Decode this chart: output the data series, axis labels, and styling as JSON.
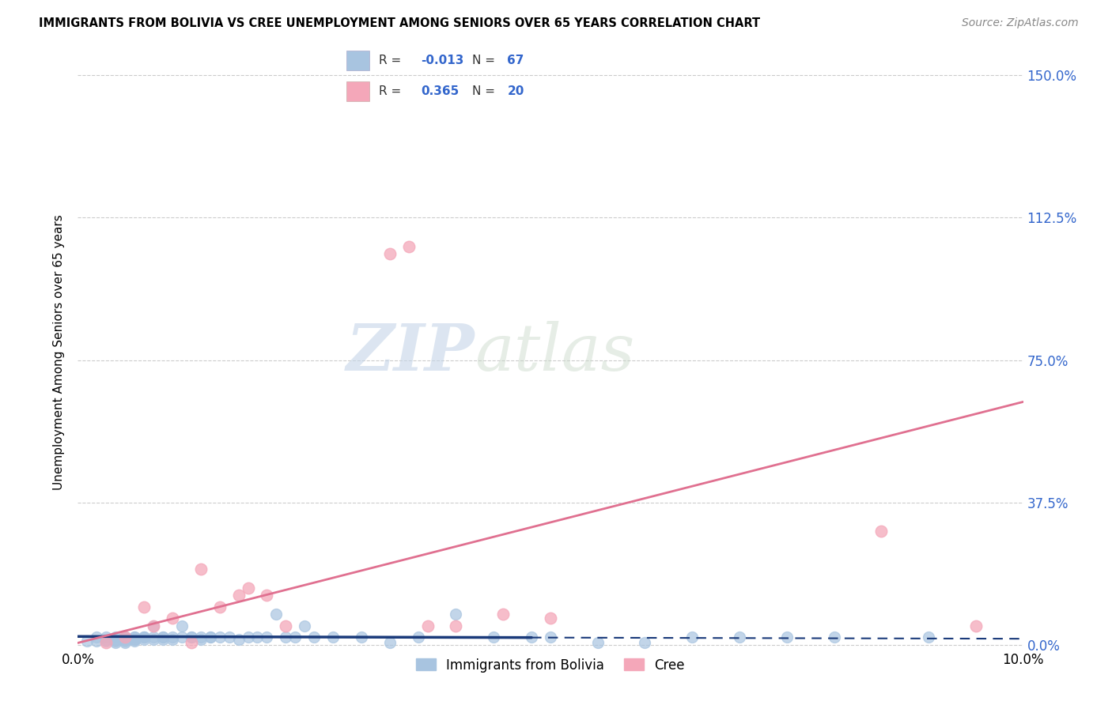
{
  "title": "IMMIGRANTS FROM BOLIVIA VS CREE UNEMPLOYMENT AMONG SENIORS OVER 65 YEARS CORRELATION CHART",
  "source": "Source: ZipAtlas.com",
  "ylabel": "Unemployment Among Seniors over 65 years",
  "yticks": [
    "0.0%",
    "37.5%",
    "75.0%",
    "112.5%",
    "150.0%"
  ],
  "ytick_vals": [
    0.0,
    0.375,
    0.75,
    1.125,
    1.5
  ],
  "xlim": [
    0,
    0.1
  ],
  "ylim": [
    -0.01,
    1.55
  ],
  "r_bolivia": "-0.013",
  "n_bolivia": "67",
  "r_cree": "0.365",
  "n_cree": "20",
  "color_bolivia": "#a8c4e0",
  "color_cree": "#f4a7b9",
  "line_color_bolivia": "#1a3a7a",
  "line_color_cree": "#e07090",
  "watermark_zip": "ZIP",
  "watermark_atlas": "atlas",
  "legend_labels": [
    "Immigrants from Bolivia",
    "Cree"
  ],
  "bolivia_x": [
    0.001,
    0.002,
    0.002,
    0.003,
    0.003,
    0.003,
    0.004,
    0.004,
    0.004,
    0.004,
    0.005,
    0.005,
    0.005,
    0.005,
    0.005,
    0.005,
    0.006,
    0.006,
    0.006,
    0.006,
    0.006,
    0.007,
    0.007,
    0.007,
    0.007,
    0.008,
    0.008,
    0.008,
    0.009,
    0.009,
    0.009,
    0.01,
    0.01,
    0.011,
    0.011,
    0.012,
    0.012,
    0.013,
    0.013,
    0.014,
    0.014,
    0.015,
    0.016,
    0.017,
    0.018,
    0.019,
    0.02,
    0.021,
    0.022,
    0.023,
    0.024,
    0.025,
    0.027,
    0.03,
    0.033,
    0.036,
    0.04,
    0.044,
    0.048,
    0.05,
    0.055,
    0.06,
    0.065,
    0.07,
    0.075,
    0.08,
    0.09
  ],
  "bolivia_y": [
    0.01,
    0.02,
    0.01,
    0.02,
    0.015,
    0.01,
    0.02,
    0.01,
    0.005,
    0.015,
    0.02,
    0.015,
    0.01,
    0.02,
    0.005,
    0.02,
    0.02,
    0.015,
    0.01,
    0.02,
    0.015,
    0.02,
    0.02,
    0.015,
    0.02,
    0.05,
    0.02,
    0.015,
    0.02,
    0.015,
    0.02,
    0.02,
    0.015,
    0.02,
    0.05,
    0.02,
    0.02,
    0.02,
    0.015,
    0.02,
    0.02,
    0.02,
    0.02,
    0.015,
    0.02,
    0.02,
    0.02,
    0.08,
    0.02,
    0.02,
    0.05,
    0.02,
    0.02,
    0.02,
    0.005,
    0.02,
    0.08,
    0.02,
    0.02,
    0.02,
    0.005,
    0.005,
    0.02,
    0.02,
    0.02,
    0.02,
    0.02
  ],
  "cree_x": [
    0.003,
    0.005,
    0.007,
    0.008,
    0.01,
    0.012,
    0.013,
    0.015,
    0.017,
    0.018,
    0.02,
    0.022,
    0.033,
    0.035,
    0.037,
    0.04,
    0.045,
    0.05,
    0.085,
    0.095
  ],
  "cree_y": [
    0.005,
    0.02,
    0.1,
    0.05,
    0.07,
    0.005,
    0.2,
    0.1,
    0.13,
    0.15,
    0.13,
    0.05,
    1.03,
    1.05,
    0.05,
    0.05,
    0.08,
    0.07,
    0.3,
    0.05
  ],
  "bolivia_trend_x": [
    0.0,
    0.1
  ],
  "bolivia_trend_y": [
    0.022,
    0.016
  ],
  "bolivia_trend_solid_end": 0.048,
  "cree_trend_x": [
    0.0,
    0.1
  ],
  "cree_trend_y": [
    0.005,
    0.64
  ]
}
